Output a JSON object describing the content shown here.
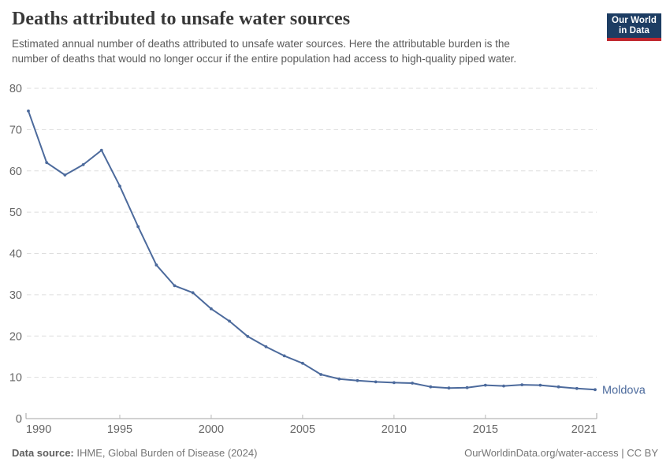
{
  "header": {
    "logo": {
      "line1": "Our World",
      "line2": "in Data",
      "bg_color": "#1d3d63",
      "accent_color": "#c0262d"
    }
  },
  "chart_data": {
    "type": "line",
    "title": "Deaths attributed to unsafe water sources",
    "subtitle_lines": [
      "Estimated annual number of deaths attributed to unsafe water sources. Here the attributable burden is the",
      "number of deaths that would no longer occur if the entire population had access to high-quality piped water."
    ],
    "x": [
      1990,
      1991,
      1992,
      1993,
      1994,
      1995,
      1996,
      1997,
      1998,
      1999,
      2000,
      2001,
      2002,
      2003,
      2004,
      2005,
      2006,
      2007,
      2008,
      2009,
      2010,
      2011,
      2012,
      2013,
      2014,
      2015,
      2016,
      2017,
      2018,
      2019,
      2020,
      2021
    ],
    "series": [
      {
        "name": "Moldova",
        "color": "#4c6a9c",
        "values": [
          74.5,
          62.0,
          59.0,
          61.5,
          65.0,
          56.3,
          46.5,
          37.2,
          32.2,
          30.5,
          26.6,
          23.6,
          19.9,
          17.4,
          15.2,
          13.4,
          10.7,
          9.6,
          9.2,
          8.9,
          8.7,
          8.6,
          7.7,
          7.4,
          7.5,
          8.1,
          7.9,
          8.2,
          8.1,
          7.7,
          7.3,
          7.0
        ]
      }
    ],
    "xlim": [
      1990,
      2021
    ],
    "ylim": [
      0,
      80
    ],
    "xticks": [
      1990,
      1995,
      2000,
      2005,
      2010,
      2015,
      2021
    ],
    "yticks": [
      0,
      10,
      20,
      30,
      40,
      50,
      60,
      70,
      80
    ],
    "grid": "horizontal-dashed",
    "legend_position": "end-of-line",
    "end_label": "Moldova",
    "colors": {
      "gridline": "#dedede",
      "axis_line": "#a3a3a3",
      "axis_tick": "#b8b8b8",
      "tick_label": "#666666"
    }
  },
  "footer": {
    "datasource_label": "Data source:",
    "datasource_value": " IHME, Global Burden of Disease (2024)",
    "credit_link": "OurWorldinData.org/water-access",
    "credit_suffix": " | CC BY"
  }
}
